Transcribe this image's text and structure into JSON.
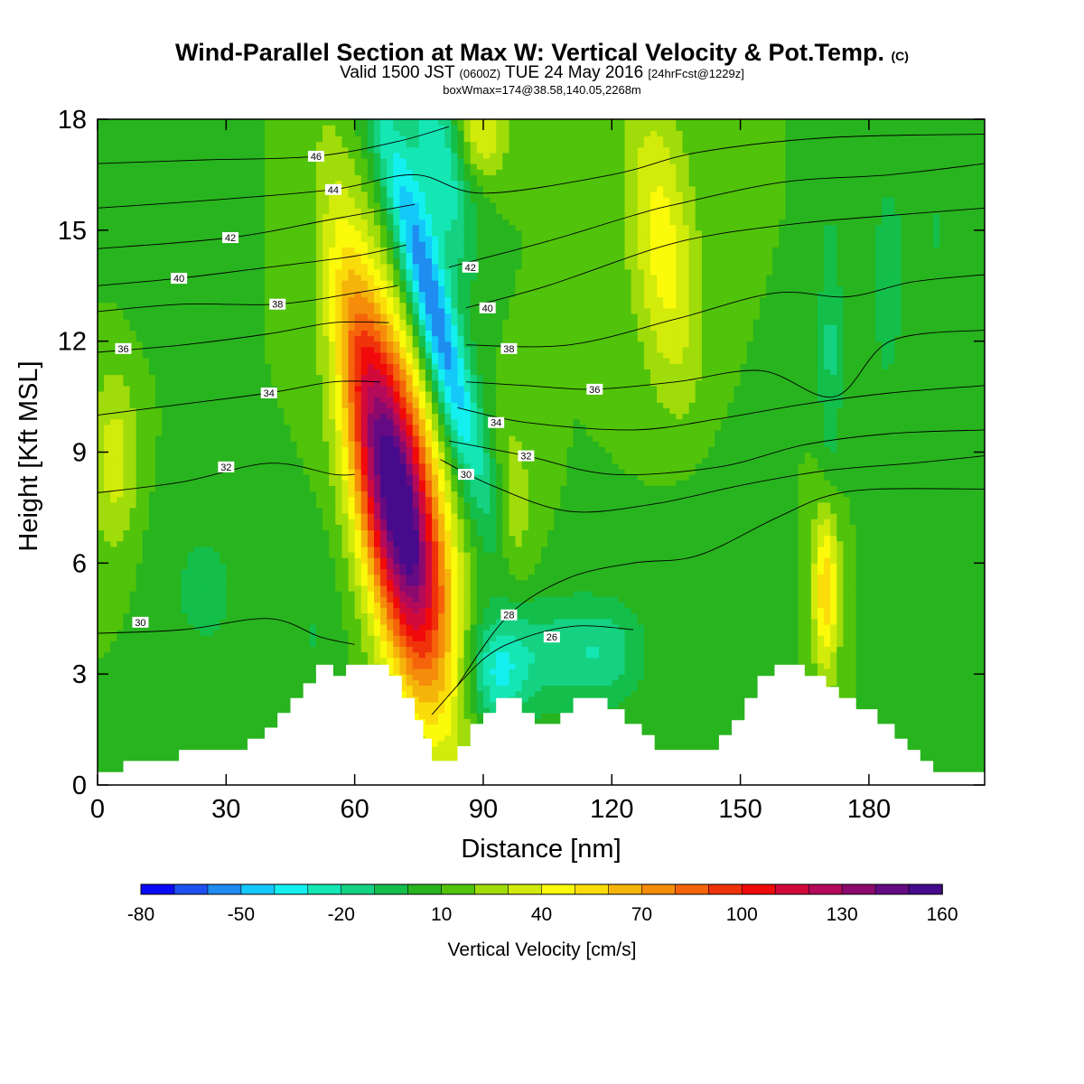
{
  "header": {
    "title": "Wind-Parallel Section at Max W: Vertical Velocity & Pot.Temp.",
    "title_mark": "(C)",
    "subtitle_a": "Valid 1500 JST",
    "subtitle_b": "(0600Z)",
    "subtitle_c": "TUE 24 May 2016",
    "subtitle_d": "[24hrFcst@1229z]",
    "subtitle2": "boxWmax=174@38.58,140.05,2268m"
  },
  "chart_data": {
    "type": "heatmap",
    "xlabel": "Distance [nm]",
    "ylabel": "Height [Kft MSL]",
    "xlim": [
      0,
      207
    ],
    "ylim": [
      0,
      18
    ],
    "x_ticks": [
      0,
      30,
      60,
      90,
      120,
      150,
      180
    ],
    "y_ticks": [
      0,
      3,
      6,
      9,
      12,
      15,
      18
    ],
    "colorbar": {
      "label": "Vertical Velocity [cm/s]",
      "range": [
        -80,
        160
      ],
      "step": 10,
      "tick_labels": [
        -80,
        -50,
        -20,
        10,
        40,
        70,
        100,
        130,
        160
      ],
      "colors": [
        "#0a0afa",
        "#1e50f0",
        "#1e8cf0",
        "#14c8fa",
        "#14f0f0",
        "#14e6b4",
        "#14d282",
        "#14be4b",
        "#28b41e",
        "#50c30a",
        "#a0dc0a",
        "#d2eb0a",
        "#fafa0a",
        "#fadc0a",
        "#f5b40a",
        "#f58c0a",
        "#f5640a",
        "#f0320a",
        "#f00a0a",
        "#d20a3c",
        "#b40a5a",
        "#8c0a6e",
        "#640a82",
        "#460a8c"
      ]
    },
    "background_w": 10,
    "terrain_profile": [
      [
        0,
        0.35
      ],
      [
        6,
        0.35
      ],
      [
        6,
        0.65
      ],
      [
        19,
        0.65
      ],
      [
        19,
        0.95
      ],
      [
        35,
        0.95
      ],
      [
        35,
        1.25
      ],
      [
        39,
        1.25
      ],
      [
        39,
        1.55
      ],
      [
        42,
        1.55
      ],
      [
        42,
        1.95
      ],
      [
        45,
        1.95
      ],
      [
        45,
        2.35
      ],
      [
        48,
        2.35
      ],
      [
        48,
        2.75
      ],
      [
        51,
        2.75
      ],
      [
        51,
        3.25
      ],
      [
        55,
        3.25
      ],
      [
        55,
        2.95
      ],
      [
        58,
        2.95
      ],
      [
        58,
        3.25
      ],
      [
        68,
        3.25
      ],
      [
        68,
        2.95
      ],
      [
        71,
        2.95
      ],
      [
        71,
        2.35
      ],
      [
        74,
        2.35
      ],
      [
        74,
        1.75
      ],
      [
        76,
        1.75
      ],
      [
        76,
        1.25
      ],
      [
        78,
        1.25
      ],
      [
        78,
        0.65
      ],
      [
        84,
        0.65
      ],
      [
        84,
        1.05
      ],
      [
        87,
        1.05
      ],
      [
        87,
        1.65
      ],
      [
        90,
        1.65
      ],
      [
        90,
        1.95
      ],
      [
        93,
        1.95
      ],
      [
        93,
        2.35
      ],
      [
        99,
        2.35
      ],
      [
        99,
        1.95
      ],
      [
        102,
        1.95
      ],
      [
        102,
        1.65
      ],
      [
        108,
        1.65
      ],
      [
        108,
        1.95
      ],
      [
        111,
        1.95
      ],
      [
        111,
        2.35
      ],
      [
        119,
        2.35
      ],
      [
        119,
        2.05
      ],
      [
        123,
        2.05
      ],
      [
        123,
        1.65
      ],
      [
        127,
        1.65
      ],
      [
        127,
        1.35
      ],
      [
        130,
        1.35
      ],
      [
        130,
        0.95
      ],
      [
        145,
        0.95
      ],
      [
        145,
        1.35
      ],
      [
        148,
        1.35
      ],
      [
        148,
        1.75
      ],
      [
        151,
        1.75
      ],
      [
        151,
        2.35
      ],
      [
        154,
        2.35
      ],
      [
        154,
        2.95
      ],
      [
        158,
        2.95
      ],
      [
        158,
        3.25
      ],
      [
        165,
        3.25
      ],
      [
        165,
        2.95
      ],
      [
        170,
        2.95
      ],
      [
        170,
        2.65
      ],
      [
        173,
        2.65
      ],
      [
        173,
        2.35
      ],
      [
        177,
        2.35
      ],
      [
        177,
        2.05
      ],
      [
        182,
        2.05
      ],
      [
        182,
        1.65
      ],
      [
        186,
        1.65
      ],
      [
        186,
        1.25
      ],
      [
        189,
        1.25
      ],
      [
        189,
        0.95
      ],
      [
        192,
        0.95
      ],
      [
        192,
        0.65
      ],
      [
        195,
        0.65
      ],
      [
        195,
        0.35
      ],
      [
        207,
        0.35
      ],
      [
        207,
        0
      ]
    ],
    "w_features": [
      {
        "x": 70.5,
        "y": 7.5,
        "sx": 6.5,
        "sy": 3.6,
        "w": 148,
        "tilt": -0.33
      },
      {
        "x": 71.5,
        "y": 7.4,
        "sx": 1.7,
        "sy": 1.3,
        "w": 16,
        "tilt": -0.3
      },
      {
        "x": 78,
        "y": 13.0,
        "sx": 3.6,
        "sy": 3.8,
        "w": -70,
        "tilt": -0.55
      },
      {
        "x": 80,
        "y": 16.8,
        "sx": 4.2,
        "sy": 2.0,
        "w": -40,
        "tilt": -0.4
      },
      {
        "x": 93,
        "y": 3.0,
        "sx": 5.0,
        "sy": 1.1,
        "w": -38,
        "tilt": 0
      },
      {
        "x": 108,
        "y": 3.6,
        "sx": 10.0,
        "sy": 1.1,
        "w": -25,
        "tilt": 0
      },
      {
        "x": 120,
        "y": 3.6,
        "sx": 6.0,
        "sy": 1.0,
        "w": -15,
        "tilt": 0
      },
      {
        "x": 132,
        "y": 14.5,
        "sx": 5.5,
        "sy": 3.0,
        "w": 35,
        "tilt": -0.2
      },
      {
        "x": 60,
        "y": 12.5,
        "sx": 4.0,
        "sy": 3.5,
        "w": 25,
        "tilt": -0.3
      },
      {
        "x": 170,
        "y": 5.3,
        "sx": 2.2,
        "sy": 1.6,
        "w": 50,
        "tilt": 0
      },
      {
        "x": 171,
        "y": 11.8,
        "sx": 2.0,
        "sy": 2.8,
        "w": -22,
        "tilt": 0
      },
      {
        "x": 184,
        "y": 13.5,
        "sx": 4.0,
        "sy": 3.5,
        "w": -12,
        "tilt": 0
      },
      {
        "x": 4,
        "y": 8.8,
        "sx": 4.0,
        "sy": 1.8,
        "w": 25,
        "tilt": 0
      },
      {
        "x": 25,
        "y": 5.3,
        "sx": 9.0,
        "sy": 2.0,
        "w": -12,
        "tilt": 0
      },
      {
        "x": 50,
        "y": 4.0,
        "sx": 5.0,
        "sy": 2.0,
        "w": -10,
        "tilt": 0
      },
      {
        "x": 97,
        "y": 7.4,
        "sx": 3.0,
        "sy": 2.0,
        "w": 18,
        "tilt": 0
      },
      {
        "x": 143,
        "y": 6.5,
        "sx": 8.0,
        "sy": 2.0,
        "w": -8,
        "tilt": 0
      },
      {
        "x": 196,
        "y": 15.0,
        "sx": 5.0,
        "sy": 3.0,
        "w": -10,
        "tilt": 0
      },
      {
        "x": 14,
        "y": 16.5,
        "sx": 8.0,
        "sy": 2.5,
        "w": -10,
        "tilt": 0
      },
      {
        "x": 90,
        "y": 17.6,
        "sx": 4.0,
        "sy": 0.8,
        "w": 30,
        "tilt": 0
      }
    ],
    "theta_contours": [
      {
        "level": 26,
        "label_at": [
          106,
          4.0
        ],
        "points": [
          [
            78,
            1.9
          ],
          [
            90,
            3.4
          ],
          [
            100,
            4.0
          ],
          [
            112,
            4.3
          ],
          [
            125,
            4.2
          ]
        ]
      },
      {
        "level": 28,
        "label_at": [
          96,
          4.6
        ],
        "points": [
          [
            84,
            2.7
          ],
          [
            96,
            4.6
          ],
          [
            110,
            5.6
          ],
          [
            125,
            6.0
          ],
          [
            140,
            6.2
          ],
          [
            158,
            7.2
          ],
          [
            170,
            7.8
          ],
          [
            182,
            8.0
          ],
          [
            207,
            8.0
          ]
        ]
      },
      {
        "level": 30,
        "label_at": [
          10,
          4.4
        ],
        "points": [
          [
            0,
            4.1
          ],
          [
            20,
            4.2
          ],
          [
            40,
            4.5
          ],
          [
            52,
            4.0
          ],
          [
            60,
            3.8
          ]
        ]
      },
      {
        "level": 30,
        "label_at": [
          86,
          8.4
        ],
        "points": [
          [
            80,
            8.8
          ],
          [
            92,
            8.1
          ],
          [
            110,
            7.4
          ],
          [
            130,
            7.6
          ],
          [
            150,
            8.1
          ],
          [
            170,
            8.5
          ],
          [
            190,
            8.7
          ],
          [
            207,
            8.9
          ]
        ]
      },
      {
        "level": 32,
        "label_at": [
          30,
          8.6
        ],
        "points": [
          [
            0,
            7.9
          ],
          [
            20,
            8.2
          ],
          [
            40,
            8.7
          ],
          [
            55,
            8.4
          ],
          [
            60,
            8.4
          ]
        ]
      },
      {
        "level": 32,
        "label_at": [
          100,
          8.9
        ],
        "points": [
          [
            82,
            9.3
          ],
          [
            100,
            8.9
          ],
          [
            120,
            8.4
          ],
          [
            145,
            8.6
          ],
          [
            165,
            9.2
          ],
          [
            185,
            9.5
          ],
          [
            207,
            9.6
          ]
        ]
      },
      {
        "level": 34,
        "label_at": [
          40,
          10.6
        ],
        "points": [
          [
            0,
            10.0
          ],
          [
            20,
            10.3
          ],
          [
            40,
            10.6
          ],
          [
            55,
            10.9
          ],
          [
            66,
            10.9
          ]
        ]
      },
      {
        "level": 34,
        "label_at": [
          93,
          9.8
        ],
        "points": [
          [
            84,
            10.2
          ],
          [
            100,
            9.8
          ],
          [
            125,
            9.6
          ],
          [
            145,
            9.9
          ],
          [
            165,
            10.3
          ],
          [
            185,
            10.6
          ],
          [
            207,
            10.8
          ]
        ]
      },
      {
        "level": 36,
        "label_at": [
          6,
          11.8
        ],
        "points": [
          [
            0,
            11.7
          ],
          [
            20,
            11.9
          ],
          [
            40,
            12.2
          ],
          [
            55,
            12.5
          ],
          [
            68,
            12.5
          ]
        ]
      },
      {
        "level": 36,
        "label_at": [
          116,
          10.7
        ],
        "points": [
          [
            86,
            10.9
          ],
          [
            100,
            10.8
          ],
          [
            116,
            10.7
          ],
          [
            135,
            10.9
          ],
          [
            155,
            11.2
          ],
          [
            172,
            10.5
          ],
          [
            185,
            12.0
          ],
          [
            207,
            12.3
          ]
        ]
      },
      {
        "level": 38,
        "label_at": [
          42,
          13.0
        ],
        "points": [
          [
            0,
            12.8
          ],
          [
            20,
            13.0
          ],
          [
            42,
            13.0
          ],
          [
            60,
            13.3
          ],
          [
            70,
            13.5
          ]
        ]
      },
      {
        "level": 38,
        "label_at": [
          96,
          11.8
        ],
        "points": [
          [
            86,
            11.9
          ],
          [
            110,
            11.9
          ],
          [
            135,
            12.6
          ],
          [
            158,
            13.3
          ],
          [
            175,
            13.2
          ],
          [
            190,
            13.6
          ],
          [
            207,
            13.8
          ]
        ]
      },
      {
        "level": 40,
        "label_at": [
          19,
          13.7
        ],
        "points": [
          [
            0,
            13.5
          ],
          [
            19,
            13.7
          ],
          [
            40,
            14.0
          ],
          [
            60,
            14.3
          ],
          [
            72,
            14.6
          ]
        ]
      },
      {
        "level": 40,
        "label_at": [
          91,
          12.9
        ],
        "points": [
          [
            86,
            12.9
          ],
          [
            105,
            13.5
          ],
          [
            130,
            14.5
          ],
          [
            145,
            14.9
          ],
          [
            165,
            15.2
          ],
          [
            185,
            15.4
          ],
          [
            207,
            15.6
          ]
        ]
      },
      {
        "level": 42,
        "label_at": [
          31,
          14.8
        ],
        "points": [
          [
            0,
            14.5
          ],
          [
            31,
            14.8
          ],
          [
            55,
            15.3
          ],
          [
            74,
            15.7
          ]
        ]
      },
      {
        "level": 42,
        "label_at": [
          87,
          14.0
        ],
        "points": [
          [
            82,
            14.0
          ],
          [
            105,
            14.7
          ],
          [
            125,
            15.4
          ],
          [
            135,
            15.7
          ],
          [
            160,
            16.3
          ],
          [
            185,
            16.5
          ],
          [
            207,
            16.8
          ]
        ]
      },
      {
        "level": 44,
        "label_at": [
          55,
          16.1
        ],
        "points": [
          [
            0,
            15.6
          ],
          [
            25,
            15.8
          ],
          [
            55,
            16.1
          ],
          [
            74,
            16.5
          ],
          [
            90,
            16.0
          ],
          [
            120,
            16.5
          ],
          [
            140,
            17.1
          ],
          [
            170,
            17.5
          ],
          [
            207,
            17.6
          ]
        ]
      },
      {
        "level": 46,
        "label_at": [
          51,
          17.0
        ],
        "points": [
          [
            0,
            16.8
          ],
          [
            25,
            16.9
          ],
          [
            51,
            17.0
          ],
          [
            70,
            17.4
          ],
          [
            82,
            17.8
          ]
        ]
      }
    ]
  }
}
